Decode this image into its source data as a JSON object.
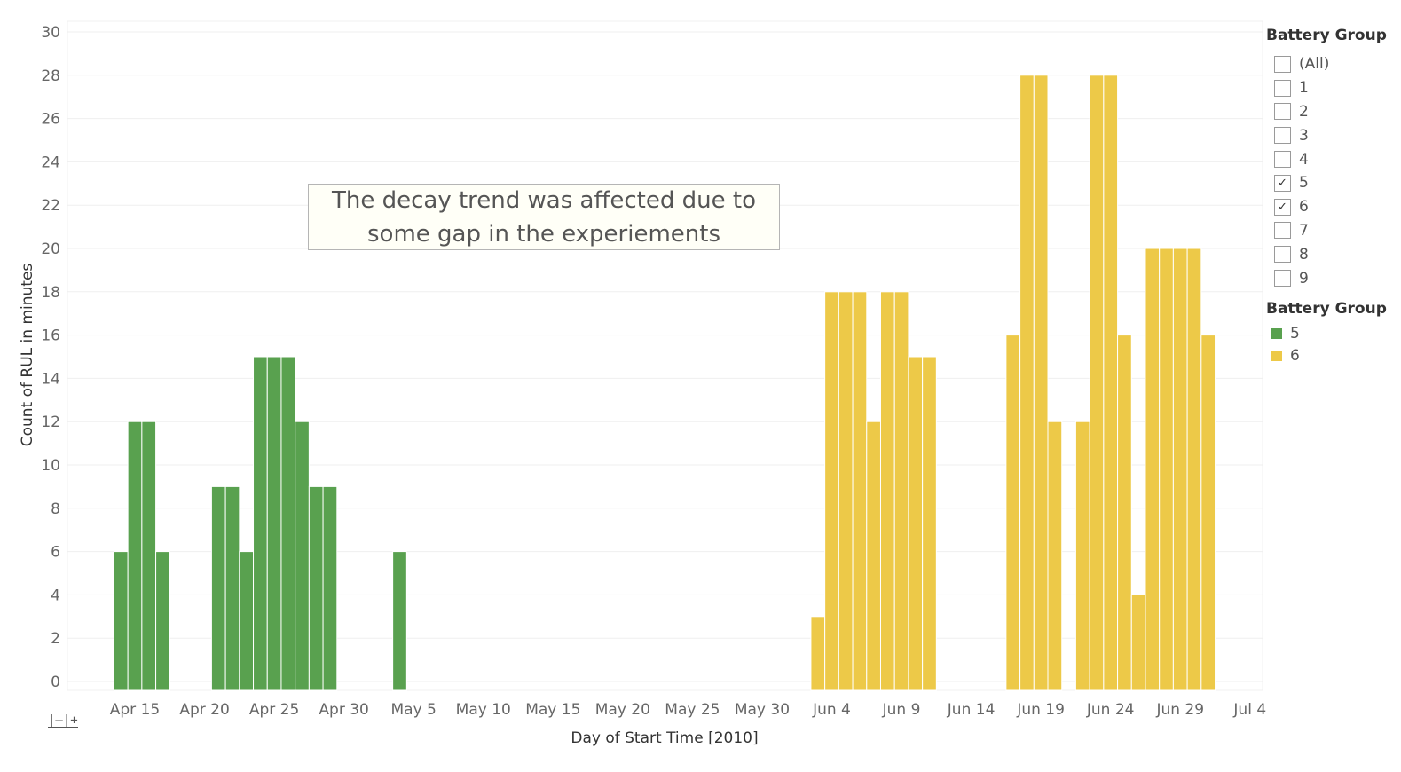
{
  "chart_data": {
    "type": "bar",
    "xlabel": "Day of Start Time [2010]",
    "ylabel": "Count of RUL in minutes",
    "ylim": [
      0,
      30
    ],
    "y_ticks": [
      0,
      2,
      4,
      6,
      8,
      10,
      12,
      14,
      16,
      18,
      20,
      22,
      24,
      26,
      28,
      30
    ],
    "x_range": [
      "2010-04-11",
      "2010-07-05"
    ],
    "x_ticks": [
      {
        "date": "2010-04-15",
        "label": "Apr 15"
      },
      {
        "date": "2010-04-20",
        "label": "Apr 20"
      },
      {
        "date": "2010-04-25",
        "label": "Apr 25"
      },
      {
        "date": "2010-04-30",
        "label": "Apr 30"
      },
      {
        "date": "2010-05-05",
        "label": "May 5"
      },
      {
        "date": "2010-05-10",
        "label": "May 10"
      },
      {
        "date": "2010-05-15",
        "label": "May 15"
      },
      {
        "date": "2010-05-20",
        "label": "May 20"
      },
      {
        "date": "2010-05-25",
        "label": "May 25"
      },
      {
        "date": "2010-05-30",
        "label": "May 30"
      },
      {
        "date": "2010-06-04",
        "label": "Jun 4"
      },
      {
        "date": "2010-06-09",
        "label": "Jun 9"
      },
      {
        "date": "2010-06-14",
        "label": "Jun 14"
      },
      {
        "date": "2010-06-19",
        "label": "Jun 19"
      },
      {
        "date": "2010-06-24",
        "label": "Jun 24"
      },
      {
        "date": "2010-06-29",
        "label": "Jun 29"
      },
      {
        "date": "2010-07-04",
        "label": "Jul 4"
      }
    ],
    "series": [
      {
        "name": "5",
        "color": "#59a14f",
        "points": [
          {
            "x": "2010-04-14",
            "y": 6
          },
          {
            "x": "2010-04-15",
            "y": 12
          },
          {
            "x": "2010-04-16",
            "y": 12
          },
          {
            "x": "2010-04-17",
            "y": 6
          },
          {
            "x": "2010-04-21",
            "y": 9
          },
          {
            "x": "2010-04-22",
            "y": 9
          },
          {
            "x": "2010-04-23",
            "y": 6
          },
          {
            "x": "2010-04-24",
            "y": 15
          },
          {
            "x": "2010-04-25",
            "y": 15
          },
          {
            "x": "2010-04-26",
            "y": 15
          },
          {
            "x": "2010-04-27",
            "y": 12
          },
          {
            "x": "2010-04-28",
            "y": 9
          },
          {
            "x": "2010-04-29",
            "y": 9
          },
          {
            "x": "2010-05-04",
            "y": 6
          }
        ]
      },
      {
        "name": "6",
        "color": "#edc948",
        "points": [
          {
            "x": "2010-06-03",
            "y": 3
          },
          {
            "x": "2010-06-04",
            "y": 18
          },
          {
            "x": "2010-06-05",
            "y": 18
          },
          {
            "x": "2010-06-06",
            "y": 18
          },
          {
            "x": "2010-06-07",
            "y": 12
          },
          {
            "x": "2010-06-08",
            "y": 18
          },
          {
            "x": "2010-06-09",
            "y": 18
          },
          {
            "x": "2010-06-10",
            "y": 15
          },
          {
            "x": "2010-06-11",
            "y": 15
          },
          {
            "x": "2010-06-17",
            "y": 16
          },
          {
            "x": "2010-06-18",
            "y": 28
          },
          {
            "x": "2010-06-19",
            "y": 28
          },
          {
            "x": "2010-06-20",
            "y": 12
          },
          {
            "x": "2010-06-22",
            "y": 12
          },
          {
            "x": "2010-06-23",
            "y": 28
          },
          {
            "x": "2010-06-24",
            "y": 28
          },
          {
            "x": "2010-06-25",
            "y": 16
          },
          {
            "x": "2010-06-26",
            "y": 4
          },
          {
            "x": "2010-06-27",
            "y": 20
          },
          {
            "x": "2010-06-28",
            "y": 20
          },
          {
            "x": "2010-06-29",
            "y": 20
          },
          {
            "x": "2010-06-30",
            "y": 20
          },
          {
            "x": "2010-07-01",
            "y": 16
          }
        ]
      }
    ],
    "annotation": "The decay trend was affected due to some gap in the experiements",
    "legend_position": "right",
    "grid": true
  },
  "filter": {
    "title": "Battery Group",
    "options": [
      {
        "label": "(All)",
        "checked": false
      },
      {
        "label": "1",
        "checked": false
      },
      {
        "label": "2",
        "checked": false
      },
      {
        "label": "3",
        "checked": false
      },
      {
        "label": "4",
        "checked": false
      },
      {
        "label": "5",
        "checked": true
      },
      {
        "label": "6",
        "checked": true
      },
      {
        "label": "7",
        "checked": false
      },
      {
        "label": "8",
        "checked": false
      },
      {
        "label": "9",
        "checked": false
      }
    ]
  },
  "color_legend": {
    "title": "Battery Group",
    "items": [
      {
        "label": "5",
        "color": "#59a14f"
      },
      {
        "label": "6",
        "color": "#edc948"
      }
    ]
  },
  "toolbar": {
    "zoom_icon": "zoom-icon",
    "zoom_glyph": "|–|+"
  }
}
